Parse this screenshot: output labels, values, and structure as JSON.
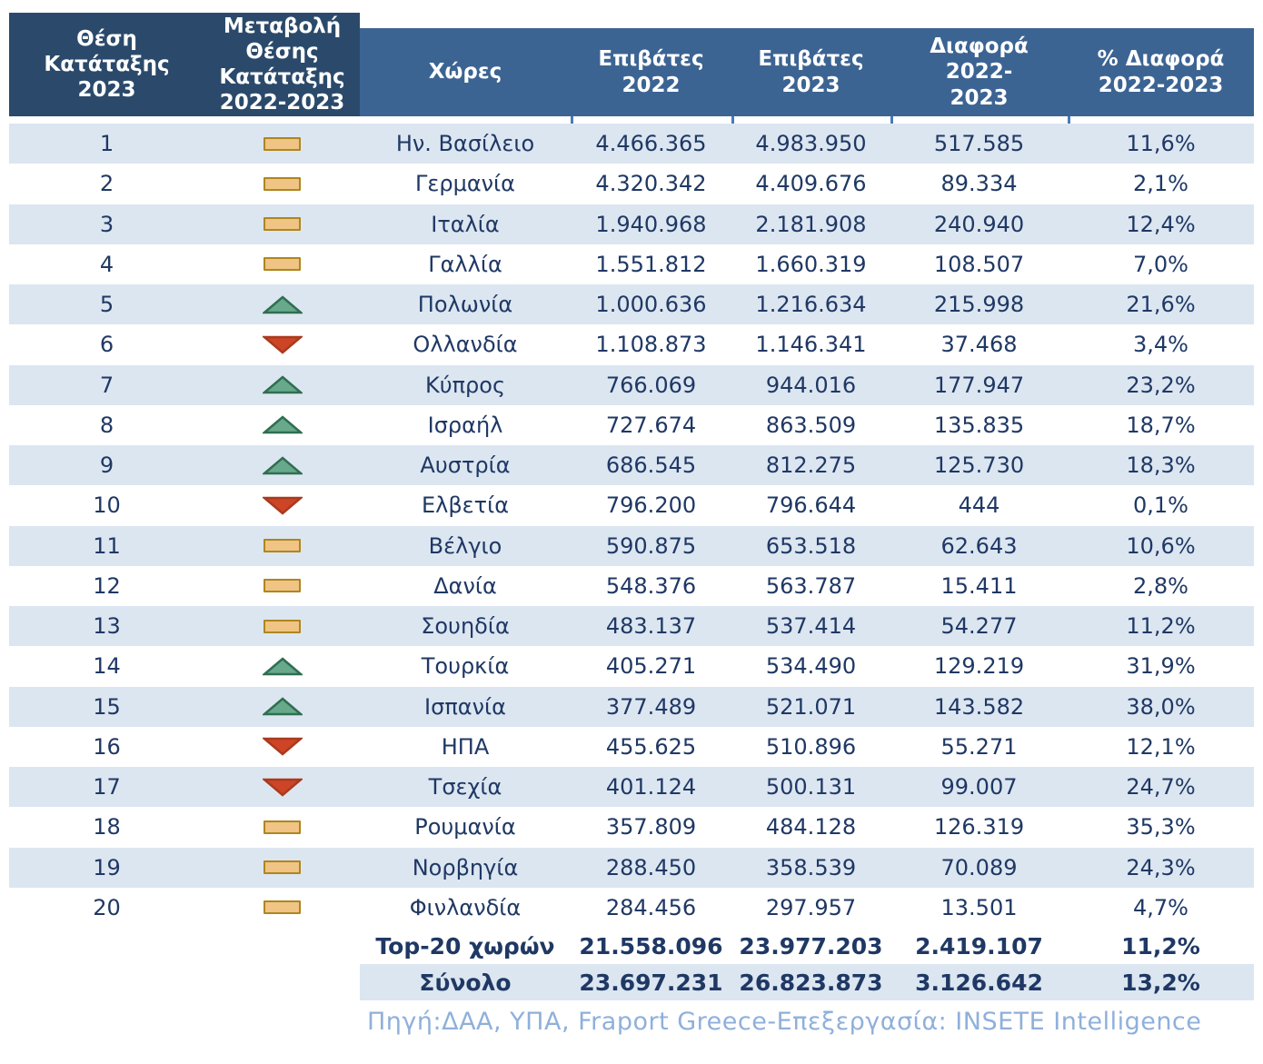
{
  "chart_data": {
    "type": "table",
    "columns": [
      "Θέση Κατάταξης 2023",
      "Μεταβολή Θέσης Κατάταξης 2022-2023",
      "Χώρες",
      "Επιβάτες 2022",
      "Επιβάτες 2023",
      "Διαφορά 2022-2023",
      "% Διαφορά 2022-2023"
    ],
    "rows": [
      {
        "rank": "1",
        "change": "same",
        "country": "Ην. Βασίλειο",
        "passengers_2022": "4.466.365",
        "passengers_2023": "4.983.950",
        "difference": "517.585",
        "pct_difference": "11,6%"
      },
      {
        "rank": "2",
        "change": "same",
        "country": "Γερμανία",
        "passengers_2022": "4.320.342",
        "passengers_2023": "4.409.676",
        "difference": "89.334",
        "pct_difference": "2,1%"
      },
      {
        "rank": "3",
        "change": "same",
        "country": "Ιταλία",
        "passengers_2022": "1.940.968",
        "passengers_2023": "2.181.908",
        "difference": "240.940",
        "pct_difference": "12,4%"
      },
      {
        "rank": "4",
        "change": "same",
        "country": "Γαλλία",
        "passengers_2022": "1.551.812",
        "passengers_2023": "1.660.319",
        "difference": "108.507",
        "pct_difference": "7,0%"
      },
      {
        "rank": "5",
        "change": "up",
        "country": "Πολωνία",
        "passengers_2022": "1.000.636",
        "passengers_2023": "1.216.634",
        "difference": "215.998",
        "pct_difference": "21,6%"
      },
      {
        "rank": "6",
        "change": "down",
        "country": "Ολλανδία",
        "passengers_2022": "1.108.873",
        "passengers_2023": "1.146.341",
        "difference": "37.468",
        "pct_difference": "3,4%"
      },
      {
        "rank": "7",
        "change": "up",
        "country": "Κύπρος",
        "passengers_2022": "766.069",
        "passengers_2023": "944.016",
        "difference": "177.947",
        "pct_difference": "23,2%"
      },
      {
        "rank": "8",
        "change": "up",
        "country": "Ισραήλ",
        "passengers_2022": "727.674",
        "passengers_2023": "863.509",
        "difference": "135.835",
        "pct_difference": "18,7%"
      },
      {
        "rank": "9",
        "change": "up",
        "country": "Αυστρία",
        "passengers_2022": "686.545",
        "passengers_2023": "812.275",
        "difference": "125.730",
        "pct_difference": "18,3%"
      },
      {
        "rank": "10",
        "change": "down",
        "country": "Ελβετία",
        "passengers_2022": "796.200",
        "passengers_2023": "796.644",
        "difference": "444",
        "pct_difference": "0,1%"
      },
      {
        "rank": "11",
        "change": "same",
        "country": "Βέλγιο",
        "passengers_2022": "590.875",
        "passengers_2023": "653.518",
        "difference": "62.643",
        "pct_difference": "10,6%"
      },
      {
        "rank": "12",
        "change": "same",
        "country": "Δανία",
        "passengers_2022": "548.376",
        "passengers_2023": "563.787",
        "difference": "15.411",
        "pct_difference": "2,8%"
      },
      {
        "rank": "13",
        "change": "same",
        "country": "Σουηδία",
        "passengers_2022": "483.137",
        "passengers_2023": "537.414",
        "difference": "54.277",
        "pct_difference": "11,2%"
      },
      {
        "rank": "14",
        "change": "up",
        "country": "Τουρκία",
        "passengers_2022": "405.271",
        "passengers_2023": "534.490",
        "difference": "129.219",
        "pct_difference": "31,9%"
      },
      {
        "rank": "15",
        "change": "up",
        "country": "Ισπανία",
        "passengers_2022": "377.489",
        "passengers_2023": "521.071",
        "difference": "143.582",
        "pct_difference": "38,0%"
      },
      {
        "rank": "16",
        "change": "down",
        "country": "ΗΠΑ",
        "passengers_2022": "455.625",
        "passengers_2023": "510.896",
        "difference": "55.271",
        "pct_difference": "12,1%"
      },
      {
        "rank": "17",
        "change": "down",
        "country": "Τσεχία",
        "passengers_2022": "401.124",
        "passengers_2023": "500.131",
        "difference": "99.007",
        "pct_difference": "24,7%"
      },
      {
        "rank": "18",
        "change": "same",
        "country": "Ρουμανία",
        "passengers_2022": "357.809",
        "passengers_2023": "484.128",
        "difference": "126.319",
        "pct_difference": "35,3%"
      },
      {
        "rank": "19",
        "change": "same",
        "country": "Νορβηγία",
        "passengers_2022": "288.450",
        "passengers_2023": "358.539",
        "difference": "70.089",
        "pct_difference": "24,3%"
      },
      {
        "rank": "20",
        "change": "same",
        "country": "Φινλανδία",
        "passengers_2022": "284.456",
        "passengers_2023": "297.957",
        "difference": "13.501",
        "pct_difference": "4,7%"
      }
    ],
    "totals": [
      {
        "label": "Top-20 χωρών",
        "passengers_2022": "21.558.096",
        "passengers_2023": "23.977.203",
        "difference": "2.419.107",
        "pct_difference": "11,2%"
      },
      {
        "label": "Σύνολο",
        "passengers_2022": "23.697.231",
        "passengers_2023": "26.823.873",
        "difference": "3.126.642",
        "pct_difference": "13,2%"
      }
    ],
    "source": "Πηγή:ΔΑΑ, ΥΠΑ, Fraport Greece-Επεξεργασία: INSETE Intelligence",
    "icon_meanings": {
      "same": "no-change-icon",
      "up": "rank-up-icon",
      "down": "rank-down-icon"
    },
    "colors": {
      "header_dark": "#2b4a6b",
      "header_light": "#3c6493",
      "row_alternate": "#dce6f1",
      "text": "#1f3864",
      "no_change_fill": "#f0c484",
      "no_change_border": "#ae861f",
      "up_fill": "#68a88b",
      "up_border": "#2f6e52",
      "down_fill": "#cd4526",
      "down_border": "#a93a1e",
      "source_text": "#8fb0da"
    }
  }
}
